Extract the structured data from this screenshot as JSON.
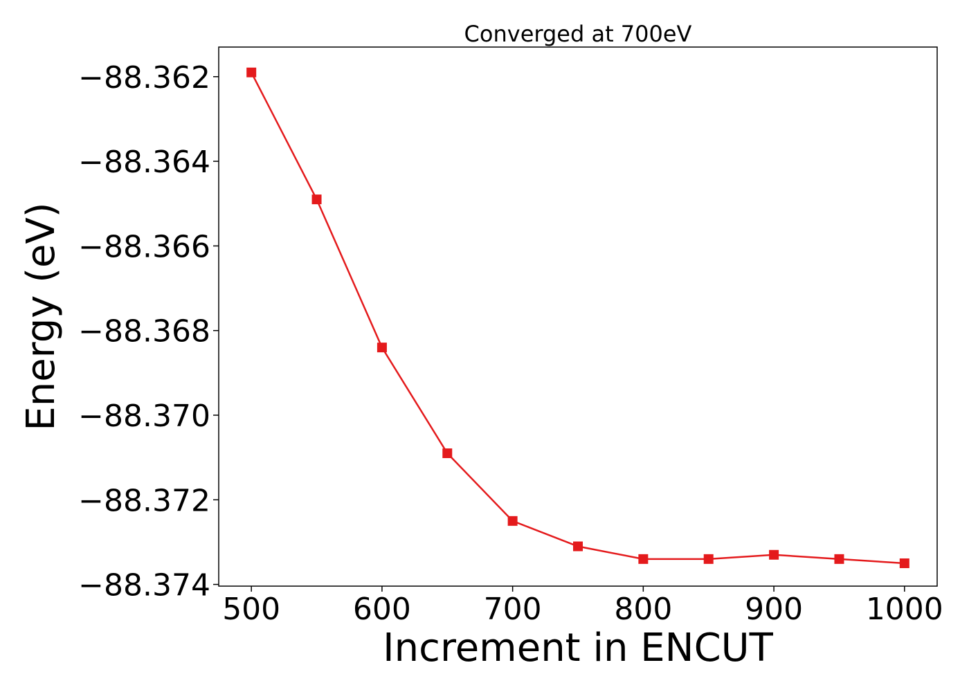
{
  "chart_data": {
    "type": "line",
    "title": "Converged at 700eV",
    "xlabel": "Increment in ENCUT",
    "ylabel": "Energy (eV)",
    "x": [
      500,
      550,
      600,
      650,
      700,
      750,
      800,
      850,
      900,
      950,
      1000
    ],
    "series": [
      {
        "values": [
          -88.3619,
          -88.3649,
          -88.3684,
          -88.3709,
          -88.3725,
          -88.3731,
          -88.3734,
          -88.3734,
          -88.3733,
          -88.3734,
          -88.3735
        ],
        "color": "#e41a1c",
        "marker": "square"
      }
    ],
    "xlim": [
      475,
      1025
    ],
    "ylim": [
      -88.37404,
      -88.3613
    ],
    "xticks": [
      500,
      600,
      700,
      800,
      900,
      1000
    ],
    "xtick_labels": [
      "500",
      "600",
      "700",
      "800",
      "900",
      "1000"
    ],
    "yticks": [
      -88.362,
      -88.364,
      -88.366,
      -88.368,
      -88.37,
      -88.372,
      -88.374
    ],
    "ytick_labels": [
      "−88.362",
      "−88.364",
      "−88.366",
      "−88.368",
      "−88.370",
      "−88.372",
      "−88.374"
    ],
    "grid": false,
    "legend": "none"
  }
}
